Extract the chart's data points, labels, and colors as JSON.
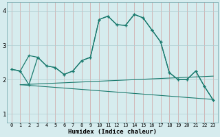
{
  "xlabel": "Humidex (Indice chaleur)",
  "bg_color": "#d6ecee",
  "grid_color": "#aecdd1",
  "line_color": "#1a7a6e",
  "xlim": [
    -0.5,
    23.5
  ],
  "ylim": [
    0.75,
    4.25
  ],
  "yticks": [
    1,
    2,
    3,
    4
  ],
  "xticks": [
    0,
    1,
    2,
    3,
    4,
    5,
    6,
    7,
    8,
    9,
    10,
    11,
    12,
    13,
    14,
    15,
    16,
    17,
    18,
    19,
    20,
    21,
    22,
    23
  ],
  "line1_x": [
    0,
    1,
    2,
    3,
    4,
    5,
    6,
    7,
    8,
    9,
    10,
    11,
    12,
    13,
    14,
    15,
    16,
    17,
    18,
    19,
    20,
    21,
    22,
    23
  ],
  "line1_y": [
    2.3,
    2.25,
    2.7,
    2.65,
    2.4,
    2.35,
    2.15,
    2.25,
    2.55,
    2.65,
    3.75,
    3.85,
    3.6,
    3.58,
    3.9,
    3.8,
    3.45,
    3.1,
    2.2,
    2.0,
    2.0,
    2.25,
    1.8,
    1.4
  ],
  "line2_x": [
    0,
    1,
    2,
    3,
    4,
    5,
    6,
    7,
    8,
    9,
    10,
    11,
    12,
    13,
    14,
    15,
    16,
    17,
    18,
    19,
    20,
    21,
    22,
    23
  ],
  "line2_y": [
    2.3,
    2.25,
    1.85,
    2.65,
    2.4,
    2.35,
    2.15,
    2.25,
    2.55,
    2.65,
    3.75,
    3.85,
    3.6,
    3.58,
    3.9,
    3.8,
    3.45,
    3.1,
    2.2,
    2.0,
    2.0,
    2.25,
    1.8,
    1.4
  ],
  "line3_x": [
    1,
    23
  ],
  "line3_y": [
    1.85,
    2.1
  ],
  "line4_x": [
    1,
    23
  ],
  "line4_y": [
    1.85,
    1.42
  ]
}
